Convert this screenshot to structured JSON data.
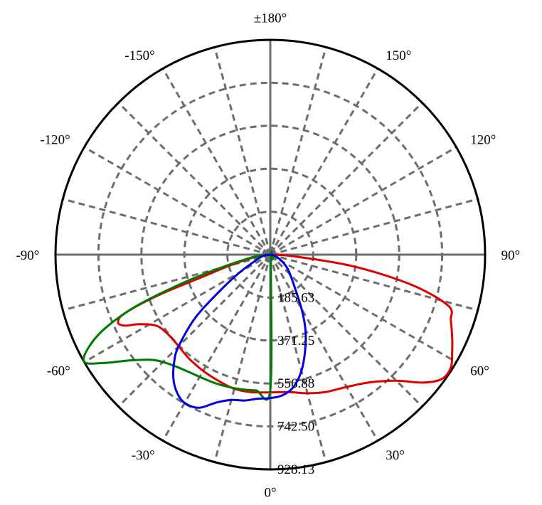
{
  "chart_data": {
    "type": "polar",
    "angle_labels": [
      {
        "deg": 0,
        "label": "0°"
      },
      {
        "deg": 30,
        "label": "30°"
      },
      {
        "deg": 60,
        "label": "60°"
      },
      {
        "deg": 90,
        "label": "90°"
      },
      {
        "deg": 120,
        "label": "120°"
      },
      {
        "deg": 150,
        "label": "150°"
      },
      {
        "deg": 180,
        "label": "±180°"
      },
      {
        "deg": -150,
        "label": "-150°"
      },
      {
        "deg": -120,
        "label": "-120°"
      },
      {
        "deg": -90,
        "label": "-90°"
      },
      {
        "deg": -60,
        "label": "-60°"
      },
      {
        "deg": -30,
        "label": "-30°"
      }
    ],
    "radial_ticks": [
      185.63,
      371.25,
      556.88,
      742.5,
      928.13
    ],
    "radial_tick_labels": [
      "185.63",
      "371.25",
      "556.88",
      "742.50",
      "928.13"
    ],
    "r_max": 928.13,
    "grid": true,
    "series": [
      {
        "color": "#e00000",
        "points": [
          [
            -90,
            0
          ],
          [
            -85,
            30
          ],
          [
            -80,
            80
          ],
          [
            -75,
            180
          ],
          [
            -72,
            300
          ],
          [
            -70,
            520
          ],
          [
            -68,
            680
          ],
          [
            -66,
            720
          ],
          [
            -64,
            700
          ],
          [
            -62,
            640
          ],
          [
            -58,
            580
          ],
          [
            -52,
            560
          ],
          [
            -45,
            560
          ],
          [
            -38,
            570
          ],
          [
            -30,
            580
          ],
          [
            -22,
            590
          ],
          [
            -15,
            600
          ],
          [
            -8,
            600
          ],
          [
            0,
            595
          ],
          [
            8,
            600
          ],
          [
            15,
            620
          ],
          [
            22,
            640
          ],
          [
            30,
            660
          ],
          [
            38,
            700
          ],
          [
            45,
            770
          ],
          [
            50,
            860
          ],
          [
            54,
            915
          ],
          [
            58,
            920
          ],
          [
            62,
            890
          ],
          [
            66,
            860
          ],
          [
            70,
            830
          ],
          [
            74,
            800
          ],
          [
            78,
            620
          ],
          [
            82,
            360
          ],
          [
            86,
            100
          ],
          [
            90,
            0
          ]
        ]
      },
      {
        "color": "#007a00",
        "points": [
          [
            -90,
            0
          ],
          [
            -85,
            40
          ],
          [
            -80,
            100
          ],
          [
            -75,
            230
          ],
          [
            -72,
            400
          ],
          [
            -69,
            620
          ],
          [
            -66,
            780
          ],
          [
            -63,
            880
          ],
          [
            -60,
            928
          ],
          [
            -57,
            860
          ],
          [
            -53,
            760
          ],
          [
            -48,
            680
          ],
          [
            -42,
            640
          ],
          [
            -36,
            620
          ],
          [
            -30,
            610
          ],
          [
            -24,
            605
          ],
          [
            -18,
            600
          ],
          [
            -12,
            595
          ],
          [
            -6,
            590
          ],
          [
            0,
            585
          ],
          [
            5,
            30
          ],
          [
            30,
            20
          ],
          [
            60,
            10
          ],
          [
            90,
            0
          ]
        ]
      },
      {
        "color": "#0000e0",
        "points": [
          [
            -90,
            0
          ],
          [
            -80,
            30
          ],
          [
            -70,
            60
          ],
          [
            -60,
            150
          ],
          [
            -55,
            250
          ],
          [
            -50,
            420
          ],
          [
            -45,
            560
          ],
          [
            -42,
            620
          ],
          [
            -38,
            680
          ],
          [
            -34,
            720
          ],
          [
            -30,
            740
          ],
          [
            -25,
            730
          ],
          [
            -20,
            680
          ],
          [
            -15,
            650
          ],
          [
            -10,
            640
          ],
          [
            -5,
            625
          ],
          [
            0,
            620
          ],
          [
            5,
            610
          ],
          [
            10,
            580
          ],
          [
            15,
            520
          ],
          [
            20,
            440
          ],
          [
            25,
            360
          ],
          [
            30,
            270
          ],
          [
            40,
            150
          ],
          [
            50,
            100
          ],
          [
            60,
            60
          ],
          [
            70,
            30
          ],
          [
            80,
            15
          ],
          [
            90,
            0
          ]
        ]
      }
    ]
  }
}
